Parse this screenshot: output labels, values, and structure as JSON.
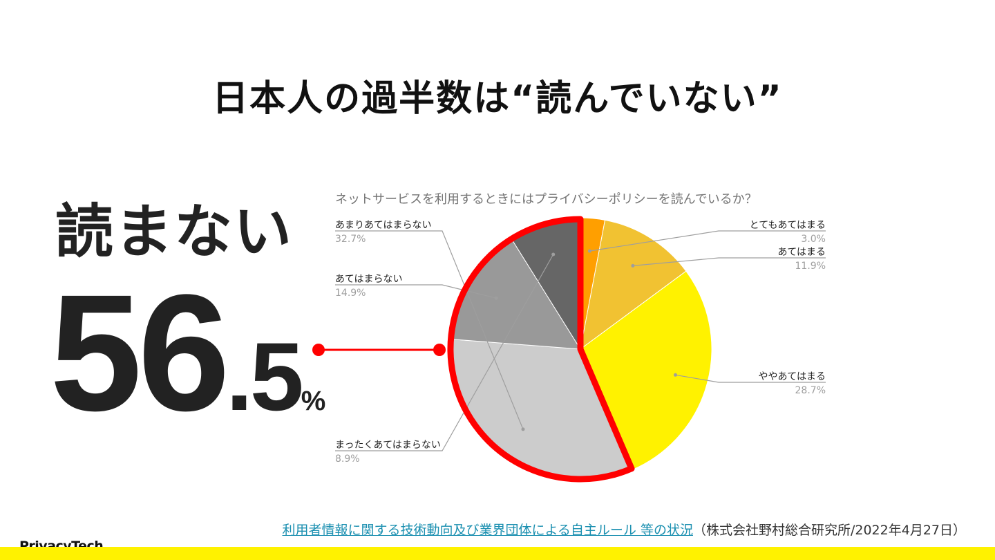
{
  "slide": {
    "title": "日本人の過半数は“読んでいない”",
    "big_label": "読まない",
    "big_number_int": "56",
    "big_number_dec": ".5",
    "big_number_unit": "%",
    "logo": "PrivacyTech",
    "footer_link": "利用者情報に関する技術動向及び業界団体による自主ルール 等の状況",
    "footer_source": "（株式会社野村総合研究所/2022年4月27日）"
  },
  "colors": {
    "highlight_outline": "#ff0000",
    "bottom_bar": "#fff200"
  },
  "chart_data": {
    "type": "pie",
    "title": "ネットサービスを利用するときにはプライバシーポリシーを読んでいるか？",
    "slices": [
      {
        "name": "とてもあてはまる",
        "value": 3.0,
        "label": "3.0%",
        "color": "#ff9f00"
      },
      {
        "name": "あてはまる",
        "value": 11.9,
        "label": "11.9%",
        "color": "#f1c232"
      },
      {
        "name": "ややあてはまる",
        "value": 28.7,
        "label": "28.7%",
        "color": "#fff200"
      },
      {
        "name": "あまりあてはまらない",
        "value": 32.7,
        "label": "32.7%",
        "color": "#cccccc"
      },
      {
        "name": "あてはまらない",
        "value": 14.9,
        "label": "14.9%",
        "color": "#999999"
      },
      {
        "name": "まったくあてはまらない",
        "value": 8.9,
        "label": "8.9%",
        "color": "#666666"
      }
    ],
    "highlighted_total": 56.5,
    "start_angle": "top, clockwise",
    "label_positions": [
      "right",
      "right",
      "right",
      "left",
      "left",
      "left"
    ]
  }
}
